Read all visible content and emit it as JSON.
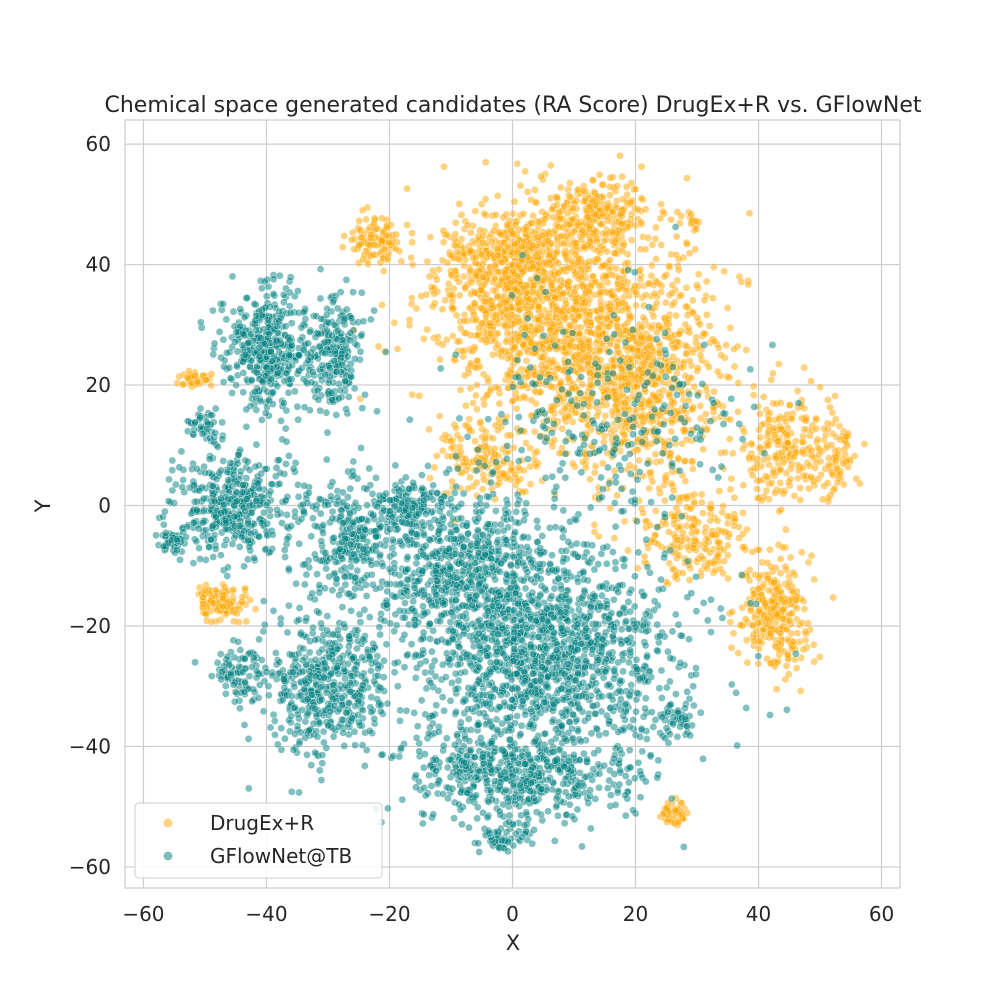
{
  "chart_data": {
    "type": "scatter",
    "title": "Chemical space generated candidates (RA Score) DrugEx+R vs. GFlowNet",
    "xlabel": "X",
    "ylabel": "Y",
    "xlim": [
      -63,
      63
    ],
    "ylim": [
      -63.5,
      64
    ],
    "xticks": [
      -60,
      -40,
      -20,
      0,
      20,
      40,
      60
    ],
    "yticks": [
      -60,
      -40,
      -20,
      0,
      20,
      40,
      60
    ],
    "xtick_labels": [
      "−60",
      "−40",
      "−20",
      "0",
      "20",
      "40",
      "60"
    ],
    "ytick_labels": [
      "−60",
      "−40",
      "−20",
      "0",
      "20",
      "40",
      "60"
    ],
    "grid": true,
    "legend_position": "lower-left",
    "series": [
      {
        "name": "DrugEx+R",
        "color": "#FFA500",
        "clusters": [
          {
            "center": [
              8,
              30
            ],
            "spread": [
              13,
              13
            ],
            "count": 1400
          },
          {
            "center": [
              22,
              20
            ],
            "spread": [
              9,
              12
            ],
            "count": 650
          },
          {
            "center": [
              0,
              40
            ],
            "spread": [
              7,
              6
            ],
            "count": 450
          },
          {
            "center": [
              14,
              48
            ],
            "spread": [
              5,
              4
            ],
            "count": 220
          },
          {
            "center": [
              -22,
              44
            ],
            "spread": [
              3,
              2.5
            ],
            "count": 110
          },
          {
            "center": [
              43,
              -18
            ],
            "spread": [
              4,
              6
            ],
            "count": 280
          },
          {
            "center": [
              44,
              10
            ],
            "spread": [
              4,
              7
            ],
            "count": 200
          },
          {
            "center": [
              30,
              -5
            ],
            "spread": [
              6,
              5
            ],
            "count": 200
          },
          {
            "center": [
              52,
              8
            ],
            "spread": [
              3,
              5
            ],
            "count": 90
          },
          {
            "center": [
              -48,
              -16
            ],
            "spread": [
              3,
              2
            ],
            "count": 120
          },
          {
            "center": [
              26,
              -51
            ],
            "spread": [
              1.5,
              1.3
            ],
            "count": 50
          },
          {
            "center": [
              -52,
              21
            ],
            "spread": [
              1.8,
              0.9
            ],
            "count": 40
          },
          {
            "center": [
              29,
              47
            ],
            "spread": [
              1,
              1
            ],
            "count": 15
          },
          {
            "center": [
              -5,
              8
            ],
            "spread": [
              5,
              4
            ],
            "count": 140
          }
        ]
      },
      {
        "name": "GFlowNet@TB",
        "color": "#008080",
        "clusters": [
          {
            "center": [
              5,
              -25
            ],
            "spread": [
              15,
              12
            ],
            "count": 1500
          },
          {
            "center": [
              -8,
              -10
            ],
            "spread": [
              9,
              8
            ],
            "count": 600
          },
          {
            "center": [
              -30,
              -30
            ],
            "spread": [
              7,
              8
            ],
            "count": 500
          },
          {
            "center": [
              -40,
              26
            ],
            "spread": [
              5,
              6
            ],
            "count": 420
          },
          {
            "center": [
              -29,
              25
            ],
            "spread": [
              3,
              7
            ],
            "count": 220
          },
          {
            "center": [
              -45,
              0
            ],
            "spread": [
              6,
              6
            ],
            "count": 420
          },
          {
            "center": [
              -27,
              -5
            ],
            "spread": [
              6,
              7
            ],
            "count": 300
          },
          {
            "center": [
              0,
              -45
            ],
            "spread": [
              12,
              5
            ],
            "count": 500
          },
          {
            "center": [
              -45,
              -28
            ],
            "spread": [
              3,
              3
            ],
            "count": 80
          },
          {
            "center": [
              -55,
              -6
            ],
            "spread": [
              1.5,
              1.5
            ],
            "count": 50
          },
          {
            "center": [
              -50,
              13
            ],
            "spread": [
              2,
              2
            ],
            "count": 45
          },
          {
            "center": [
              -17,
              0
            ],
            "spread": [
              3,
              3
            ],
            "count": 120
          },
          {
            "center": [
              26,
              -35
            ],
            "spread": [
              2,
              2
            ],
            "count": 40
          },
          {
            "center": [
              15,
              15
            ],
            "spread": [
              14,
              12
            ],
            "count": 240
          },
          {
            "center": [
              -2,
              -55
            ],
            "spread": [
              3,
              2
            ],
            "count": 60
          }
        ]
      }
    ]
  }
}
